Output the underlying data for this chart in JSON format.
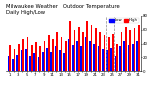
{
  "title": "Milwaukee Weather   Outdoor Temperature\nDaily High/Low",
  "background_color": "#ffffff",
  "high_color": "#ff0000",
  "low_color": "#0000ff",
  "days": [
    "1",
    "2",
    "3",
    "4",
    "5",
    "6",
    "7",
    "8",
    "9",
    "10",
    "11",
    "12",
    "13",
    "14",
    "15",
    "16",
    "17",
    "18",
    "19",
    "20",
    "21",
    "22",
    "23",
    "24",
    "25",
    "26",
    "27",
    "28",
    "29",
    "30",
    "31"
  ],
  "highs": [
    38,
    32,
    40,
    46,
    50,
    38,
    42,
    36,
    44,
    52,
    46,
    56,
    50,
    44,
    72,
    60,
    64,
    56,
    72,
    66,
    62,
    56,
    52,
    50,
    54,
    40,
    56,
    64,
    60,
    62,
    66
  ],
  "lows": [
    22,
    18,
    24,
    30,
    32,
    22,
    26,
    20,
    28,
    34,
    28,
    36,
    30,
    26,
    46,
    38,
    44,
    36,
    50,
    44,
    40,
    36,
    32,
    30,
    34,
    22,
    36,
    44,
    38,
    40,
    44
  ],
  "ylim": [
    0,
    80
  ],
  "yticks": [
    0,
    20,
    40,
    60,
    80
  ],
  "dashed_vlines": [
    22.5,
    24.5
  ],
  "title_fontsize": 3.8,
  "tick_fontsize": 2.8,
  "legend_fontsize": 2.8,
  "bar_width": 0.4,
  "legend_high": "High",
  "legend_low": "Low"
}
